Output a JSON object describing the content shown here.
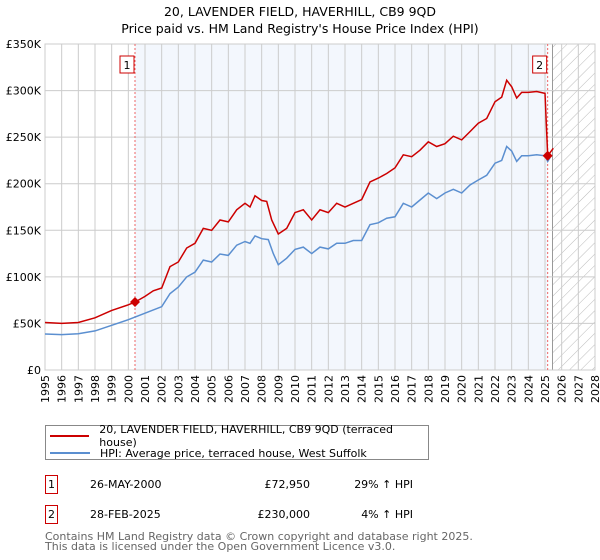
{
  "title_line1": "20, LAVENDER FIELD, HAVERHILL, CB9 9QD",
  "title_line2": "Price paid vs. HM Land Registry's House Price Index (HPI)",
  "chart_data": {
    "type": "line",
    "xlim": [
      1995,
      2028
    ],
    "ylim": [
      0,
      350000
    ],
    "x_ticks": [
      "1995",
      "1996",
      "1997",
      "1998",
      "1999",
      "2000",
      "2001",
      "2002",
      "2003",
      "2004",
      "2005",
      "2006",
      "2007",
      "2008",
      "2009",
      "2010",
      "2011",
      "2012",
      "2013",
      "2014",
      "2015",
      "2016",
      "2017",
      "2018",
      "2019",
      "2020",
      "2021",
      "2022",
      "2023",
      "2024",
      "2025",
      "2026",
      "2027",
      "2028"
    ],
    "y_ticks": [
      {
        "v": 0,
        "label": "£0"
      },
      {
        "v": 50000,
        "label": "£50K"
      },
      {
        "v": 100000,
        "label": "£100K"
      },
      {
        "v": 150000,
        "label": "£150K"
      },
      {
        "v": 200000,
        "label": "£200K"
      },
      {
        "v": 250000,
        "label": "£250K"
      },
      {
        "v": 300000,
        "label": "£300K"
      },
      {
        "v": 350000,
        "label": "£350K"
      }
    ],
    "grid": true,
    "shaded_ownership": [
      2000.4,
      2025.16
    ],
    "hatched_future_from": 2025.45,
    "series": [
      {
        "name": "20, LAVENDER FIELD, HAVERHILL, CB9 9QD (terraced house)",
        "color": "#cc0000",
        "x": [
          1995,
          1996,
          1997,
          1998,
          1999,
          2000,
          2000.4,
          2001,
          2001.5,
          2002,
          2002.5,
          2003,
          2003.5,
          2004,
          2004.5,
          2005,
          2005.5,
          2006,
          2006.5,
          2007,
          2007.3,
          2007.6,
          2008,
          2008.3,
          2008.6,
          2009,
          2009.5,
          2010,
          2010.5,
          2011,
          2011.5,
          2012,
          2012.5,
          2013,
          2013.5,
          2014,
          2014.5,
          2015,
          2015.5,
          2016,
          2016.5,
          2017,
          2017.5,
          2018,
          2018.5,
          2019,
          2019.5,
          2020,
          2020.5,
          2021,
          2021.5,
          2022,
          2022.4,
          2022.7,
          2023,
          2023.3,
          2023.6,
          2024,
          2024.5,
          2025,
          2025.16,
          2025.5
        ],
        "y": [
          51000,
          50000,
          51000,
          56000,
          64000,
          70000,
          72950,
          79000,
          85000,
          88000,
          111000,
          116000,
          131000,
          136000,
          152000,
          150000,
          161000,
          159000,
          172000,
          179000,
          175000,
          187000,
          182000,
          181000,
          161000,
          146000,
          152000,
          169000,
          172000,
          161000,
          172000,
          169000,
          179000,
          175000,
          179000,
          183000,
          202000,
          206000,
          211000,
          217000,
          231000,
          229000,
          236000,
          245000,
          240000,
          243000,
          251000,
          247000,
          256000,
          265000,
          270000,
          288000,
          293000,
          311000,
          304000,
          292000,
          298000,
          298000,
          299000,
          297000,
          230000,
          238000
        ]
      },
      {
        "name": "HPI: Average price, terraced house, West Suffolk",
        "color": "#5b8fd0",
        "x": [
          1995,
          1996,
          1997,
          1998,
          1999,
          2000,
          2001,
          2002,
          2002.5,
          2003,
          2003.5,
          2004,
          2004.5,
          2005,
          2005.5,
          2006,
          2006.5,
          2007,
          2007.3,
          2007.6,
          2008,
          2008.4,
          2008.7,
          2009,
          2009.5,
          2010,
          2010.5,
          2011,
          2011.5,
          2012,
          2012.5,
          2013,
          2013.5,
          2014,
          2014.5,
          2015,
          2015.5,
          2016,
          2016.5,
          2017,
          2017.5,
          2018,
          2018.5,
          2019,
          2019.5,
          2020,
          2020.5,
          2021,
          2021.5,
          2022,
          2022.4,
          2022.7,
          2023,
          2023.3,
          2023.6,
          2024,
          2024.5,
          2025,
          2025.16,
          2025.3
        ],
        "y": [
          38600,
          38000,
          39000,
          42000,
          48000,
          54000,
          61000,
          68000,
          82000,
          89000,
          100000,
          105000,
          118000,
          116000,
          124500,
          123000,
          134000,
          138000,
          136000,
          144000,
          141000,
          140000,
          125000,
          113000,
          120000,
          129500,
          132000,
          125000,
          132000,
          130000,
          136000,
          136000,
          139000,
          139000,
          156000,
          158000,
          163000,
          164500,
          179000,
          175000,
          182500,
          190000,
          184000,
          190000,
          194000,
          190000,
          198600,
          204000,
          209000,
          222000,
          225000,
          240000,
          235000,
          224000,
          230000,
          230000,
          231000,
          230000,
          224000,
          228000
        ]
      }
    ],
    "sales": [
      {
        "id": "1",
        "x": 2000.4,
        "y": 72950
      },
      {
        "id": "2",
        "x": 2025.16,
        "y": 230000
      }
    ]
  },
  "legend": {
    "property": "20, LAVENDER FIELD, HAVERHILL, CB9 9QD (terraced house)",
    "hpi": "HPI: Average price, terraced house, West Suffolk"
  },
  "transactions": [
    {
      "id": "1",
      "date": "26-MAY-2000",
      "price": "£72,950",
      "hpi": "29% ↑ HPI"
    },
    {
      "id": "2",
      "date": "28-FEB-2025",
      "price": "£230,000",
      "hpi": "4% ↑ HPI"
    }
  ],
  "footer": {
    "line1": "Contains HM Land Registry data © Crown copyright and database right 2025.",
    "line2": "This data is licensed under the Open Government Licence v3.0."
  }
}
